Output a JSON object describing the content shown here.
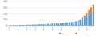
{
  "chart_data": {
    "type": "bar",
    "stacked": true,
    "grid": true,
    "legend": "bottom-right",
    "categories": [
      "1978",
      null,
      null,
      null,
      "1982",
      null,
      null,
      null,
      "1986",
      null,
      null,
      null,
      "1990",
      null,
      null,
      null,
      "1994",
      null,
      null,
      null,
      "1998",
      null,
      null,
      null,
      "2002",
      null,
      null,
      null,
      "2006",
      null,
      null,
      null,
      "2010",
      null,
      null,
      null,
      "2014",
      null,
      null,
      null
    ],
    "series": [
      {
        "name": "Domestic",
        "color": "#5b9bd5",
        "values": [
          8,
          9,
          10,
          11,
          12,
          13,
          14,
          15,
          16,
          17,
          18,
          19,
          20,
          22,
          24,
          25,
          27,
          29,
          31,
          33,
          35,
          37,
          39,
          41,
          44,
          47,
          50,
          53,
          57,
          61,
          66,
          72,
          80,
          95,
          115,
          140,
          165,
          190,
          215,
          240
        ]
      },
      {
        "name": "International",
        "color": "#ed7d31",
        "values": [
          0,
          0,
          0,
          0,
          0,
          0,
          0,
          0,
          0,
          0,
          0,
          0,
          0,
          0,
          0,
          0,
          0,
          0,
          0,
          0,
          0,
          0,
          0,
          0,
          0,
          0,
          0,
          0,
          0,
          0,
          0,
          0,
          5,
          12,
          22,
          35,
          50,
          70,
          90,
          110
        ]
      }
    ],
    "ylim": [
      0,
      400
    ],
    "yticks": [
      0,
      100,
      200,
      300,
      400
    ]
  }
}
